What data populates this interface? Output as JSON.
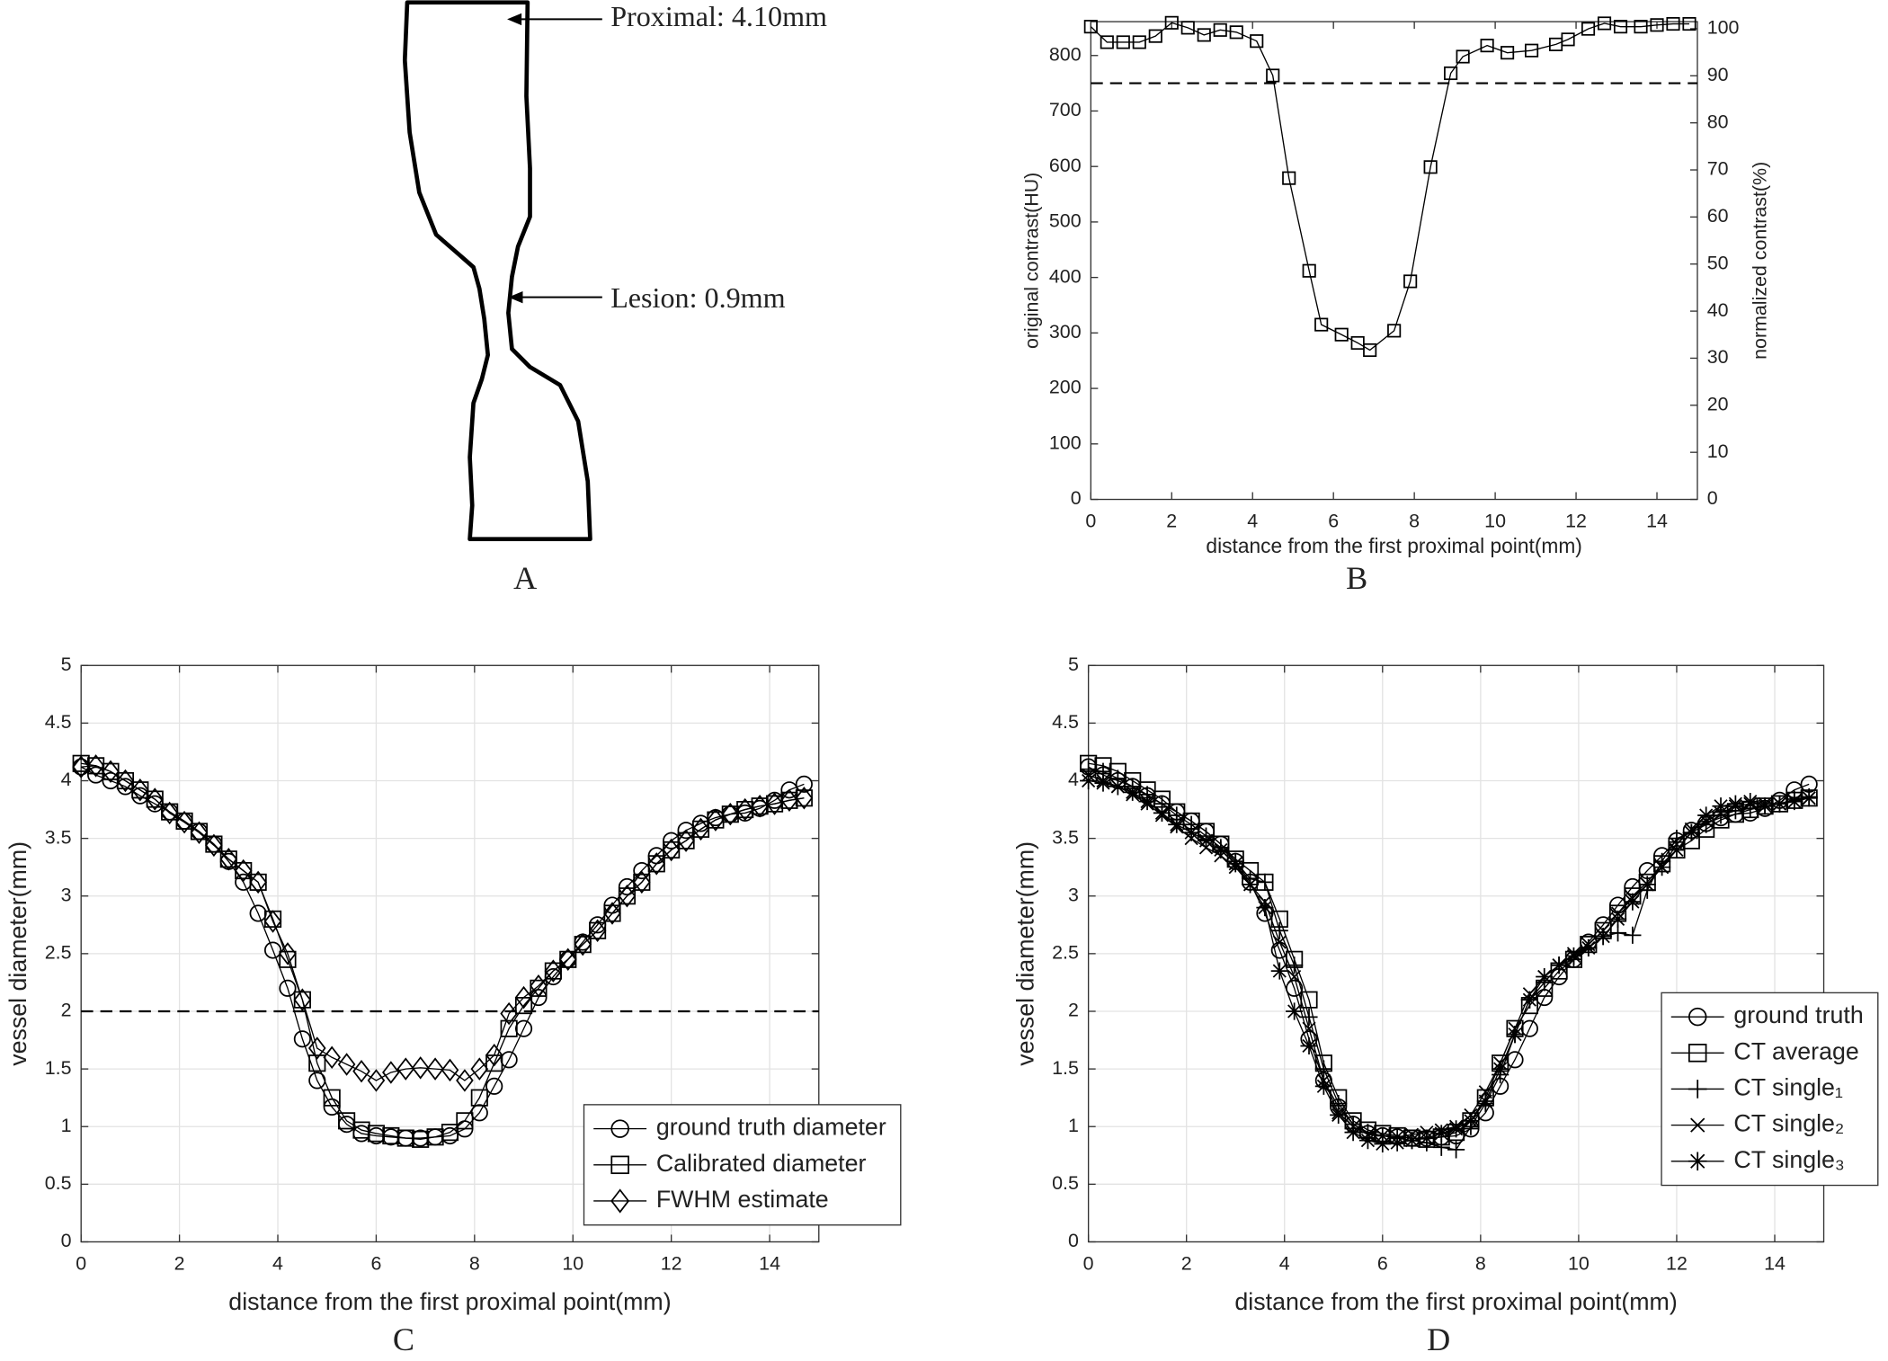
{
  "diagram": {
    "proximal_label": "Proximal: 4.10mm",
    "lesion_label": "Lesion: 0.9mm",
    "label": "A"
  },
  "chart_data": [
    {
      "type": "line",
      "label": "B",
      "xlabel": "distance from the first proximal point(mm)",
      "ylabel": "original contrast(HU)",
      "y2label": "normalized contrast(%)",
      "xlim": [
        0,
        15
      ],
      "xticks": [
        0,
        2,
        4,
        6,
        8,
        10,
        12,
        14
      ],
      "ylim": [
        0,
        861
      ],
      "yticks": [
        0,
        100,
        200,
        300,
        400,
        500,
        600,
        700,
        800
      ],
      "y2lim": [
        0,
        101.5
      ],
      "y2ticks": [
        0,
        10,
        20,
        30,
        40,
        50,
        60,
        70,
        80,
        90,
        100
      ],
      "grid": false,
      "hline": 750,
      "x": [
        0,
        0.4,
        0.8,
        1.2,
        1.6,
        2.0,
        2.4,
        2.8,
        3.2,
        3.6,
        4.1,
        4.5,
        4.9,
        5.4,
        5.7,
        6.2,
        6.6,
        6.9,
        7.5,
        7.9,
        8.4,
        8.9,
        9.2,
        9.8,
        10.3,
        10.9,
        11.5,
        11.8,
        12.3,
        12.7,
        13.1,
        13.6,
        14.0,
        14.4,
        14.8
      ],
      "series": [
        {
          "color": "#000000",
          "marker": "square",
          "values": [
            852,
            824,
            824,
            824,
            835,
            859,
            850,
            837,
            846,
            842,
            826,
            764,
            579,
            412,
            315,
            297,
            282,
            269,
            304,
            393,
            599,
            768,
            798,
            818,
            805,
            809,
            820,
            829,
            848,
            858,
            852,
            852,
            855,
            857,
            857
          ]
        }
      ]
    },
    {
      "type": "line",
      "label": "C",
      "xlabel": "distance from the first proximal point(mm)",
      "ylabel": "vessel diameter(mm)",
      "xlim": [
        0,
        15
      ],
      "xticks": [
        0,
        2,
        4,
        6,
        8,
        10,
        12,
        14
      ],
      "ylim": [
        0,
        5
      ],
      "yticks": [
        0,
        0.5,
        1,
        1.5,
        2,
        2.5,
        3,
        3.5,
        4,
        4.5,
        5
      ],
      "grid": true,
      "hline": 2,
      "legend": "lower right",
      "x": [
        0,
        0.3,
        0.6,
        0.9,
        1.2,
        1.5,
        1.8,
        2.1,
        2.4,
        2.7,
        3.0,
        3.3,
        3.6,
        3.9,
        4.2,
        4.5,
        4.8,
        5.1,
        5.4,
        5.7,
        6.0,
        6.3,
        6.6,
        6.9,
        7.2,
        7.5,
        7.8,
        8.1,
        8.4,
        8.7,
        9.0,
        9.3,
        9.6,
        9.9,
        10.2,
        10.5,
        10.8,
        11.1,
        11.4,
        11.7,
        12.0,
        12.3,
        12.6,
        12.9,
        13.2,
        13.5,
        13.8,
        14.1,
        14.4,
        14.7
      ],
      "series": [
        {
          "name": "ground truth diameter",
          "color": "#000000",
          "marker": "circle",
          "values": [
            4.12,
            4.05,
            4.0,
            3.95,
            3.87,
            3.8,
            3.73,
            3.65,
            3.56,
            3.45,
            3.3,
            3.12,
            2.85,
            2.53,
            2.2,
            1.76,
            1.4,
            1.17,
            1.02,
            0.94,
            0.92,
            0.91,
            0.9,
            0.9,
            0.91,
            0.92,
            0.98,
            1.12,
            1.35,
            1.58,
            1.85,
            2.12,
            2.3,
            2.45,
            2.6,
            2.75,
            2.92,
            3.08,
            3.22,
            3.35,
            3.48,
            3.57,
            3.63,
            3.68,
            3.71,
            3.72,
            3.76,
            3.83,
            3.92,
            3.97
          ]
        },
        {
          "name": "Calibrated diameter",
          "color": "#000000",
          "marker": "square",
          "values": [
            4.15,
            4.13,
            4.08,
            4.0,
            3.92,
            3.84,
            3.73,
            3.65,
            3.56,
            3.45,
            3.32,
            3.22,
            3.12,
            2.8,
            2.45,
            2.1,
            1.55,
            1.25,
            1.05,
            0.97,
            0.94,
            0.92,
            0.9,
            0.89,
            0.91,
            0.95,
            1.05,
            1.25,
            1.55,
            1.85,
            2.05,
            2.2,
            2.35,
            2.45,
            2.58,
            2.7,
            2.85,
            3.0,
            3.12,
            3.28,
            3.4,
            3.48,
            3.58,
            3.66,
            3.71,
            3.75,
            3.78,
            3.8,
            3.83,
            3.85
          ]
        },
        {
          "name": "FWHM estimate",
          "color": "#000000",
          "marker": "diamond",
          "values": [
            4.12,
            4.13,
            4.08,
            4.0,
            3.92,
            3.84,
            3.72,
            3.64,
            3.55,
            3.44,
            3.32,
            3.22,
            3.12,
            2.78,
            2.5,
            2.1,
            1.68,
            1.6,
            1.54,
            1.48,
            1.4,
            1.47,
            1.5,
            1.51,
            1.5,
            1.49,
            1.4,
            1.5,
            1.62,
            1.98,
            2.12,
            2.22,
            2.35,
            2.45,
            2.58,
            2.7,
            2.85,
            3.0,
            3.12,
            3.28,
            3.4,
            3.48,
            3.58,
            3.66,
            3.71,
            3.75,
            3.78,
            3.8,
            3.83,
            3.85
          ]
        }
      ]
    },
    {
      "type": "line",
      "label": "D",
      "xlabel": "distance from the first proximal point(mm)",
      "ylabel": "vessel diameter(mm)",
      "xlim": [
        0,
        15
      ],
      "xticks": [
        0,
        2,
        4,
        6,
        8,
        10,
        12,
        14
      ],
      "ylim": [
        0,
        5
      ],
      "yticks": [
        0,
        0.5,
        1,
        1.5,
        2,
        2.5,
        3,
        3.5,
        4,
        4.5,
        5
      ],
      "grid": true,
      "legend": "lower right",
      "x": [
        0,
        0.3,
        0.6,
        0.9,
        1.2,
        1.5,
        1.8,
        2.1,
        2.4,
        2.7,
        3.0,
        3.3,
        3.6,
        3.9,
        4.2,
        4.5,
        4.8,
        5.1,
        5.4,
        5.7,
        6.0,
        6.3,
        6.6,
        6.9,
        7.2,
        7.5,
        7.8,
        8.1,
        8.4,
        8.7,
        9.0,
        9.3,
        9.6,
        9.9,
        10.2,
        10.5,
        10.8,
        11.1,
        11.4,
        11.7,
        12.0,
        12.3,
        12.6,
        12.9,
        13.2,
        13.5,
        13.8,
        14.1,
        14.4,
        14.7
      ],
      "series": [
        {
          "name": "ground truth",
          "color": "#000000",
          "marker": "circle",
          "values": [
            4.12,
            4.05,
            4.0,
            3.95,
            3.87,
            3.8,
            3.73,
            3.65,
            3.56,
            3.45,
            3.3,
            3.12,
            2.85,
            2.53,
            2.2,
            1.76,
            1.4,
            1.17,
            1.02,
            0.94,
            0.92,
            0.91,
            0.9,
            0.9,
            0.91,
            0.92,
            0.98,
            1.12,
            1.35,
            1.58,
            1.85,
            2.12,
            2.3,
            2.45,
            2.6,
            2.75,
            2.92,
            3.08,
            3.22,
            3.35,
            3.48,
            3.57,
            3.63,
            3.68,
            3.71,
            3.72,
            3.76,
            3.83,
            3.92,
            3.97
          ]
        },
        {
          "name": "CT average",
          "color": "#000000",
          "marker": "square",
          "values": [
            4.15,
            4.13,
            4.08,
            4.0,
            3.92,
            3.84,
            3.73,
            3.65,
            3.56,
            3.45,
            3.32,
            3.22,
            3.12,
            2.8,
            2.45,
            2.1,
            1.55,
            1.25,
            1.05,
            0.97,
            0.94,
            0.92,
            0.9,
            0.89,
            0.91,
            0.95,
            1.05,
            1.25,
            1.55,
            1.85,
            2.05,
            2.2,
            2.35,
            2.45,
            2.58,
            2.7,
            2.85,
            3.0,
            3.12,
            3.28,
            3.4,
            3.48,
            3.58,
            3.66,
            3.71,
            3.75,
            3.78,
            3.8,
            3.83,
            3.85
          ]
        },
        {
          "name": "CT single₁",
          "color": "#000000",
          "marker": "plus",
          "values": [
            4.1,
            4.08,
            4.02,
            3.95,
            3.88,
            3.8,
            3.7,
            3.62,
            3.52,
            3.42,
            3.3,
            3.15,
            3.12,
            2.7,
            2.4,
            1.95,
            1.5,
            1.2,
            1.02,
            0.95,
            0.92,
            0.9,
            0.88,
            0.86,
            0.82,
            0.8,
            1.0,
            1.2,
            1.45,
            1.8,
            2.1,
            2.25,
            2.4,
            2.45,
            2.55,
            2.65,
            2.68,
            2.66,
            3.05,
            3.3,
            3.5,
            3.55,
            3.62,
            3.7,
            3.74,
            3.76,
            3.78,
            3.8,
            3.84,
            3.86
          ]
        },
        {
          "name": "CT single₂",
          "color": "#000000",
          "marker": "x",
          "values": [
            4.05,
            4.0,
            3.95,
            3.88,
            3.8,
            3.7,
            3.6,
            3.5,
            3.42,
            3.35,
            3.25,
            3.1,
            2.95,
            2.6,
            2.3,
            1.85,
            1.4,
            1.12,
            1.0,
            0.93,
            0.92,
            0.91,
            0.93,
            0.95,
            0.97,
            1.0,
            1.1,
            1.3,
            1.55,
            1.85,
            2.15,
            2.3,
            2.4,
            2.5,
            2.58,
            2.7,
            2.85,
            2.98,
            3.1,
            3.25,
            3.45,
            3.58,
            3.65,
            3.72,
            3.78,
            3.8,
            3.8,
            3.8,
            3.82,
            3.85
          ]
        },
        {
          "name": "CT single₃",
          "color": "#000000",
          "marker": "star",
          "values": [
            4.0,
            3.98,
            3.95,
            3.9,
            3.82,
            3.72,
            3.62,
            3.55,
            3.48,
            3.4,
            3.28,
            3.1,
            2.9,
            2.35,
            2.0,
            1.7,
            1.35,
            1.1,
            0.95,
            0.88,
            0.85,
            0.86,
            0.88,
            0.9,
            0.94,
            0.98,
            1.05,
            1.22,
            1.5,
            1.8,
            2.1,
            2.3,
            2.4,
            2.48,
            2.55,
            2.65,
            2.8,
            2.95,
            3.1,
            3.25,
            3.4,
            3.55,
            3.7,
            3.78,
            3.8,
            3.82,
            3.78,
            3.8,
            3.82,
            3.85
          ]
        }
      ]
    }
  ]
}
